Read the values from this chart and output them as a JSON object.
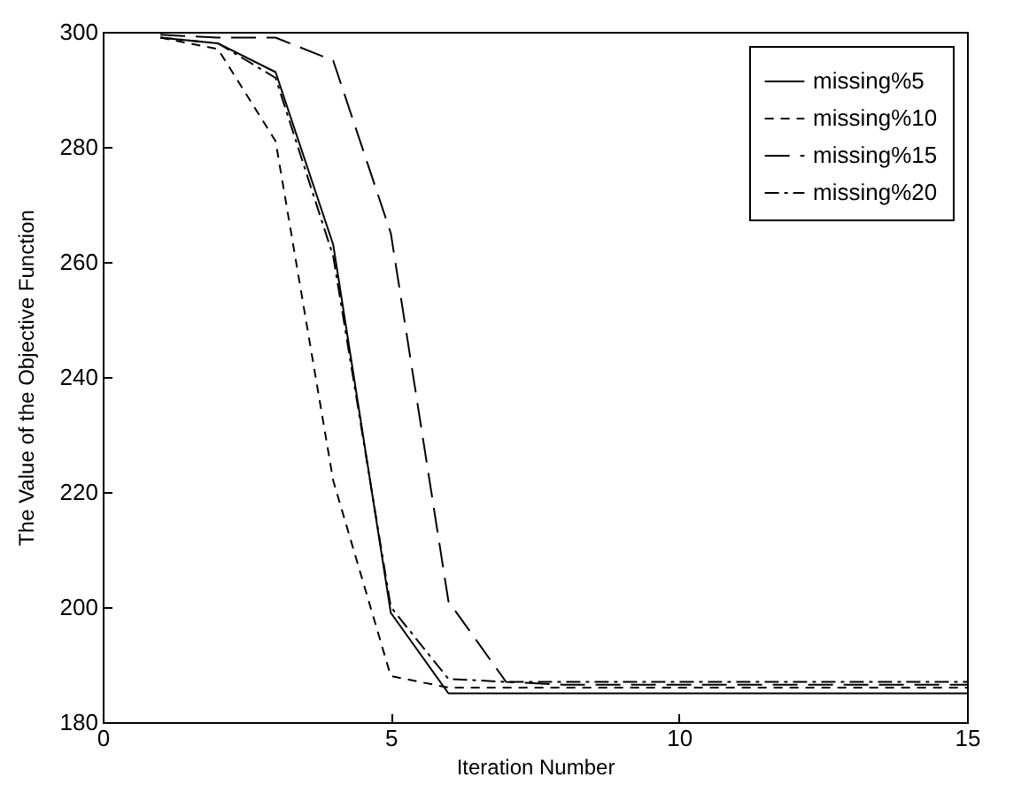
{
  "chart_data": {
    "type": "line",
    "xlabel": "Iteration Number",
    "ylabel": "The Value of the Objective Function",
    "x": [
      1,
      2,
      3,
      4,
      5,
      6,
      7,
      8,
      9,
      10,
      11,
      12,
      13,
      14,
      15
    ],
    "xlim": [
      0,
      15
    ],
    "xticks": [
      0,
      5,
      10,
      15
    ],
    "ylim": [
      180,
      300
    ],
    "yticks": [
      180,
      200,
      220,
      240,
      260,
      280,
      300
    ],
    "grid": false,
    "legend": "top right",
    "series": [
      {
        "name": "missing%5",
        "color": "#000000",
        "line_style": "solid",
        "values": [
          299,
          298,
          293,
          263,
          199,
          185,
          185,
          185,
          185,
          185,
          185,
          185,
          185,
          185,
          185
        ]
      },
      {
        "name": "missing%10",
        "color": "#000000",
        "line_style": "dashed",
        "values": [
          299,
          297,
          281,
          222,
          188,
          186,
          186,
          186,
          186,
          186,
          186,
          186,
          186,
          186,
          186
        ]
      },
      {
        "name": "missing%15",
        "color": "#000000",
        "line_style": "longdash",
        "values": [
          299.5,
          299,
          299,
          295,
          265,
          201,
          187,
          186.5,
          186.5,
          186.5,
          186.5,
          186.5,
          186.5,
          186.5,
          186.5
        ]
      },
      {
        "name": "missing%20",
        "color": "#000000",
        "line_style": "dashdot",
        "values": [
          299,
          298,
          292,
          261,
          200,
          187.5,
          187,
          187,
          187,
          187,
          187,
          187,
          187,
          187,
          187
        ]
      }
    ]
  }
}
